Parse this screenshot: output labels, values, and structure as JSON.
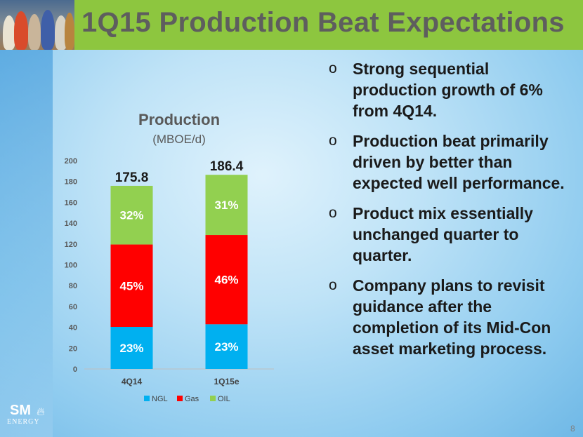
{
  "slide": {
    "title": "1Q15 Production Beat Expectations",
    "page_number": "8",
    "logo_text": "SM",
    "logo_subtext": "ENERGY"
  },
  "bullets": [
    "Strong sequential production growth of 6% from 4Q14.",
    "Production beat primarily driven by better than expected well performance.",
    "Product mix essentially unchanged quarter to quarter.",
    "Company plans to revisit guidance after the completion of its Mid-Con asset marketing process."
  ],
  "bullet_marker": "o",
  "chart_data": {
    "type": "bar",
    "stacked": true,
    "title": "Production",
    "subtitle": "(MBOE/d)",
    "categories": [
      "4Q14",
      "1Q15e"
    ],
    "totals": [
      "175.8",
      "186.4"
    ],
    "series": [
      {
        "name": "NGL",
        "color": "#00b0f0",
        "values": [
          40.4,
          42.9
        ],
        "labels": [
          "23%",
          "23%"
        ]
      },
      {
        "name": "Gas",
        "color": "#ff0000",
        "values": [
          79.1,
          85.7
        ],
        "labels": [
          "45%",
          "46%"
        ]
      },
      {
        "name": "OIL",
        "color": "#92d050",
        "values": [
          56.3,
          57.8
        ],
        "labels": [
          "32%",
          "31%"
        ]
      }
    ],
    "ylim": [
      0,
      200
    ],
    "yticks": [
      0,
      20,
      40,
      60,
      80,
      100,
      120,
      140,
      160,
      180,
      200
    ],
    "grid": false,
    "legend_position": "bottom"
  }
}
